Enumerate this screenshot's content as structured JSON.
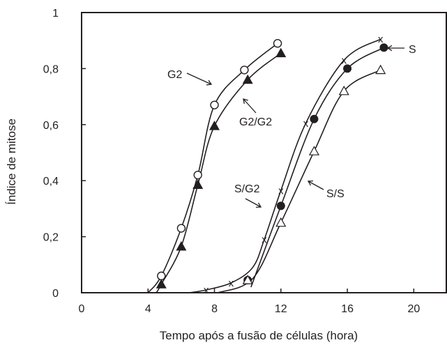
{
  "chart_data": {
    "type": "scatter",
    "xlabel": "Tempo após a fusão de células (hora)",
    "ylabel": "Índice de mitose",
    "xlim": [
      0,
      22
    ],
    "ylim": [
      0,
      1
    ],
    "x_ticks": [
      "0",
      "4",
      "8",
      "12",
      "16",
      "20"
    ],
    "y_ticks": [
      "0",
      "0,2",
      "0,4",
      "0,6",
      "0,8",
      "1"
    ],
    "grid": false,
    "series": [
      {
        "name": "G2",
        "marker": "open-circle",
        "points": [
          [
            4.8,
            0.06
          ],
          [
            6.0,
            0.23
          ],
          [
            7.0,
            0.42
          ],
          [
            8.0,
            0.67
          ],
          [
            9.8,
            0.795
          ],
          [
            11.8,
            0.89
          ]
        ],
        "curve": [
          [
            4.0,
            0.0
          ],
          [
            4.8,
            0.06
          ],
          [
            6.0,
            0.23
          ],
          [
            7.0,
            0.42
          ],
          [
            8.0,
            0.67
          ],
          [
            9.8,
            0.795
          ],
          [
            11.8,
            0.89
          ]
        ]
      },
      {
        "name": "G2/G2",
        "marker": "filled-triangle",
        "points": [
          [
            4.8,
            0.03
          ],
          [
            6.0,
            0.165
          ],
          [
            7.0,
            0.385
          ],
          [
            8.0,
            0.595
          ],
          [
            10.0,
            0.76
          ],
          [
            12.0,
            0.855
          ]
        ],
        "curve": [
          [
            4.5,
            0.0
          ],
          [
            4.8,
            0.03
          ],
          [
            6.0,
            0.165
          ],
          [
            7.0,
            0.385
          ],
          [
            8.0,
            0.595
          ],
          [
            10.0,
            0.76
          ],
          [
            12.0,
            0.855
          ]
        ]
      },
      {
        "name": "S",
        "marker": "filled-circle",
        "points": [
          [
            10.0,
            0.045
          ],
          [
            12.0,
            0.31
          ],
          [
            14.0,
            0.62
          ],
          [
            16.0,
            0.8
          ],
          [
            18.2,
            0.875
          ]
        ],
        "curve": [
          [
            10.2,
            0.02
          ],
          [
            12.0,
            0.31
          ],
          [
            14.0,
            0.62
          ],
          [
            16.0,
            0.8
          ],
          [
            18.2,
            0.875
          ]
        ]
      },
      {
        "name": "S/G2",
        "marker": "x",
        "points": [
          [
            7.5,
            0.01
          ],
          [
            9.0,
            0.035
          ],
          [
            11.0,
            0.19
          ],
          [
            12.0,
            0.365
          ],
          [
            13.5,
            0.605
          ],
          [
            15.8,
            0.83
          ],
          [
            18.0,
            0.905
          ]
        ],
        "curve": [
          [
            6.5,
            0.0
          ],
          [
            7.5,
            0.01
          ],
          [
            9.0,
            0.035
          ],
          [
            10.3,
            0.09
          ],
          [
            11.0,
            0.19
          ],
          [
            12.0,
            0.365
          ],
          [
            13.5,
            0.605
          ],
          [
            15.8,
            0.83
          ],
          [
            18.0,
            0.905
          ]
        ]
      },
      {
        "name": "S/S",
        "marker": "open-triangle",
        "points": [
          [
            10.0,
            0.045
          ],
          [
            12.0,
            0.25
          ],
          [
            14.0,
            0.505
          ],
          [
            15.8,
            0.72
          ],
          [
            18.0,
            0.795
          ]
        ],
        "curve": [
          [
            8.2,
            0.0
          ],
          [
            10.3,
            0.05
          ],
          [
            12.0,
            0.25
          ],
          [
            14.0,
            0.505
          ],
          [
            15.8,
            0.72
          ],
          [
            18.0,
            0.795
          ]
        ]
      }
    ],
    "annotations": [
      {
        "text": "G2",
        "series": "G2"
      },
      {
        "text": "G2/G2",
        "series": "G2/G2"
      },
      {
        "text": "S",
        "series": "S"
      },
      {
        "text": "S/G2",
        "series": "S/G2"
      },
      {
        "text": "S/S",
        "series": "S/S"
      }
    ]
  }
}
